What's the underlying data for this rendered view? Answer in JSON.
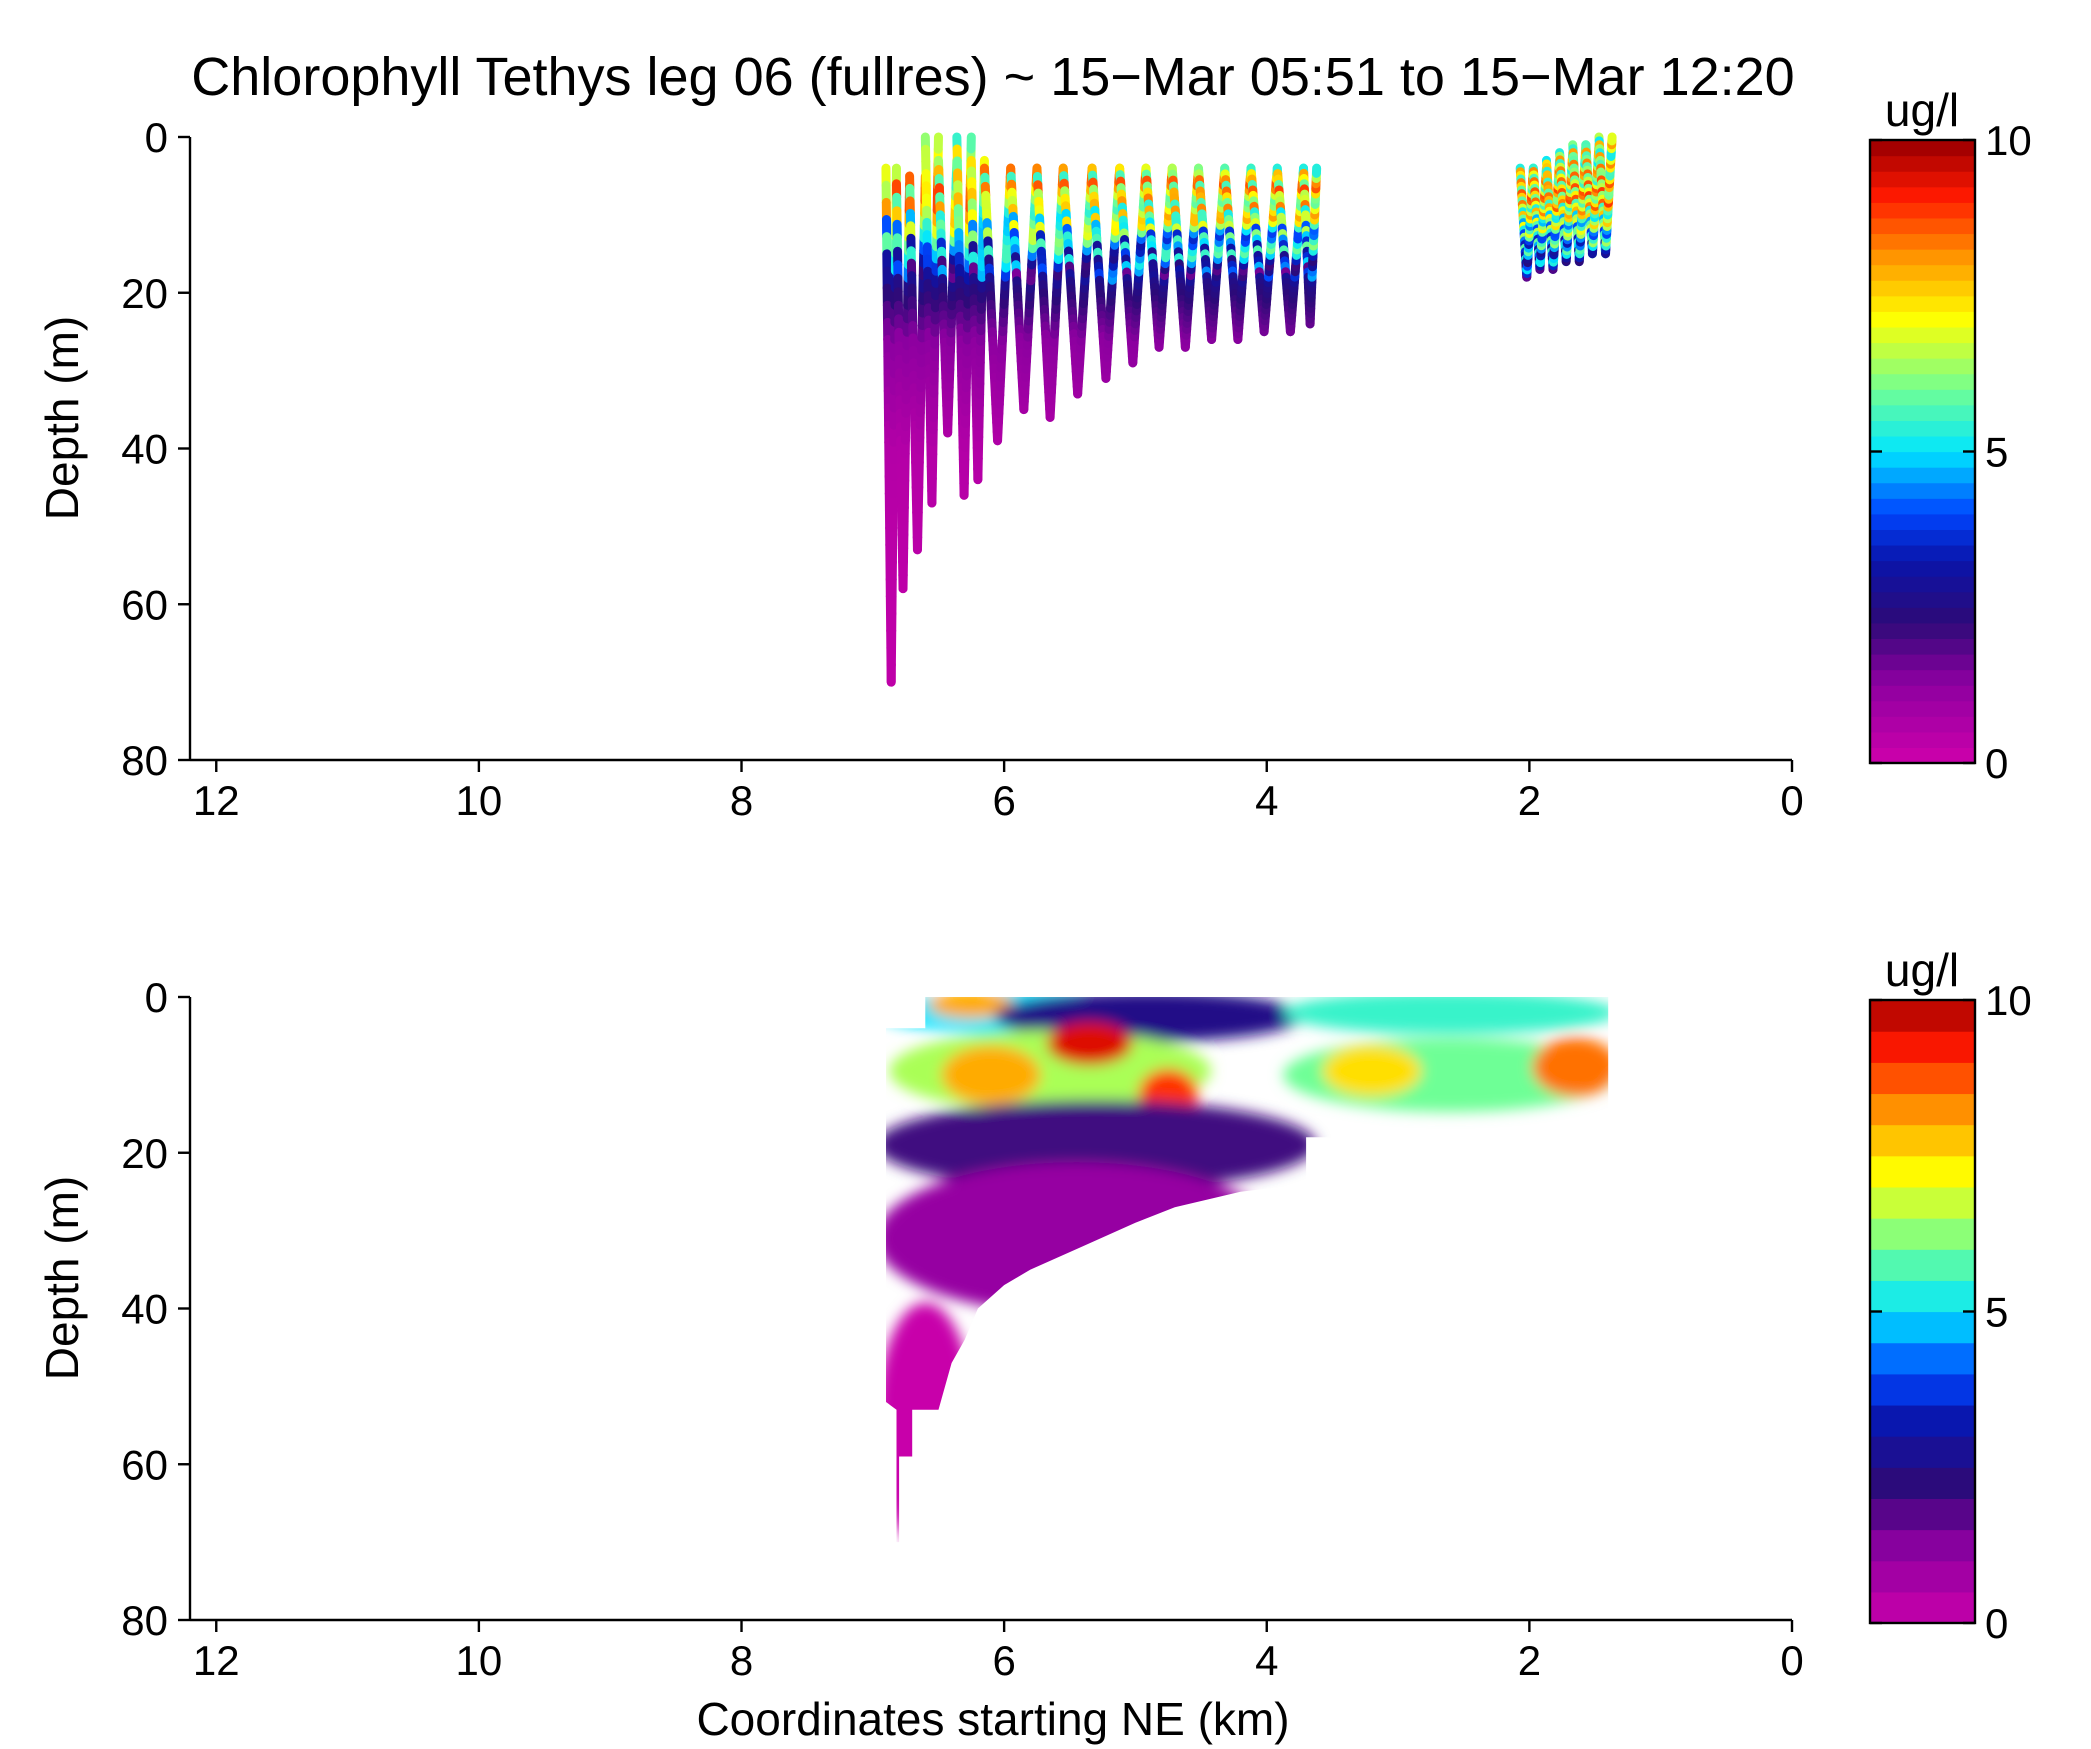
{
  "chart_data": [
    {
      "type": "scatter",
      "title": "Chlorophyll Tethys leg 06 (fullres) ~ 15−Mar 05:51 to 15−Mar 12:20",
      "xlabel": "",
      "ylabel": "Depth (m)",
      "xlim": [
        12.2,
        0
      ],
      "ylim": [
        80,
        0
      ],
      "x_ticks": [
        "12",
        "10",
        "8",
        "6",
        "4",
        "2",
        "0"
      ],
      "y_ticks": [
        "0",
        "20",
        "40",
        "60",
        "80"
      ],
      "colorbar": {
        "label": "ug/l",
        "range": [
          0,
          10
        ],
        "ticks": [
          "0",
          "5",
          "10"
        ],
        "colormap": "jet-reversed-magenta"
      },
      "yo_yo_profiles": [
        {
          "x0": 6.9,
          "x1": 6.82,
          "top": 4,
          "bottom": 70
        },
        {
          "x0": 6.82,
          "x1": 6.72,
          "top": 6,
          "bottom": 58
        },
        {
          "x0": 6.72,
          "x1": 6.6,
          "top": 5,
          "bottom": 53
        },
        {
          "x0": 6.6,
          "x1": 6.5,
          "top": 0,
          "bottom": 47
        },
        {
          "x0": 6.5,
          "x1": 6.36,
          "top": 3,
          "bottom": 38
        },
        {
          "x0": 6.36,
          "x1": 6.25,
          "top": 0,
          "bottom": 46
        },
        {
          "x0": 6.25,
          "x1": 6.15,
          "top": 3,
          "bottom": 44
        },
        {
          "x0": 6.15,
          "x1": 5.95,
          "top": 4,
          "bottom": 39
        },
        {
          "x0": 5.95,
          "x1": 5.75,
          "top": 4,
          "bottom": 35
        },
        {
          "x0": 5.75,
          "x1": 5.55,
          "top": 4,
          "bottom": 36
        },
        {
          "x0": 5.55,
          "x1": 5.33,
          "top": 4,
          "bottom": 33
        },
        {
          "x0": 5.33,
          "x1": 5.12,
          "top": 4,
          "bottom": 31
        },
        {
          "x0": 5.12,
          "x1": 4.92,
          "top": 4,
          "bottom": 29
        },
        {
          "x0": 4.92,
          "x1": 4.72,
          "top": 4,
          "bottom": 27
        },
        {
          "x0": 4.72,
          "x1": 4.52,
          "top": 4,
          "bottom": 27
        },
        {
          "x0": 4.52,
          "x1": 4.32,
          "top": 4,
          "bottom": 26
        },
        {
          "x0": 4.32,
          "x1": 4.12,
          "top": 4,
          "bottom": 26
        },
        {
          "x0": 4.12,
          "x1": 3.92,
          "top": 4,
          "bottom": 25
        },
        {
          "x0": 3.92,
          "x1": 3.72,
          "top": 4,
          "bottom": 25
        },
        {
          "x0": 3.72,
          "x1": 3.62,
          "top": 4,
          "bottom": 24
        },
        {
          "x0": 2.07,
          "x1": 1.97,
          "top": 4,
          "bottom": 18
        },
        {
          "x0": 1.97,
          "x1": 1.87,
          "top": 4,
          "bottom": 17
        },
        {
          "x0": 1.87,
          "x1": 1.77,
          "top": 3,
          "bottom": 17
        },
        {
          "x0": 1.77,
          "x1": 1.67,
          "top": 2,
          "bottom": 16
        },
        {
          "x0": 1.67,
          "x1": 1.57,
          "top": 1,
          "bottom": 16
        },
        {
          "x0": 1.57,
          "x1": 1.47,
          "top": 1,
          "bottom": 15
        },
        {
          "x0": 1.47,
          "x1": 1.37,
          "top": 0,
          "bottom": 15
        }
      ],
      "layers": [
        {
          "depth": 2,
          "value": 6.5
        },
        {
          "depth": 8,
          "value": 7.5
        },
        {
          "depth": 14,
          "value": 4.5
        },
        {
          "depth": 19,
          "value": 2.5
        },
        {
          "depth": 26,
          "value": 1.2
        },
        {
          "depth": 40,
          "value": 0.4
        },
        {
          "depth": 60,
          "value": 0.2
        }
      ]
    },
    {
      "type": "contour",
      "title": "",
      "xlabel": "Coordinates starting NE (km)",
      "ylabel": "Depth (m)",
      "xlim": [
        12.2,
        0
      ],
      "ylim": [
        80,
        0
      ],
      "x_ticks": [
        "12",
        "10",
        "8",
        "6",
        "4",
        "2",
        "0"
      ],
      "y_ticks": [
        "0",
        "20",
        "40",
        "60",
        "80"
      ],
      "colorbar": {
        "label": "ug/l",
        "range": [
          0,
          10
        ],
        "ticks": [
          "0",
          "5",
          "10"
        ],
        "levels": 20
      },
      "data_boundary": [
        [
          6.9,
          4
        ],
        [
          6.6,
          4
        ],
        [
          6.6,
          0
        ],
        [
          1.4,
          0
        ],
        [
          1.4,
          15
        ],
        [
          1.8,
          16
        ],
        [
          2.0,
          18
        ],
        [
          3.7,
          18
        ],
        [
          3.7,
          24
        ],
        [
          4.2,
          25
        ],
        [
          4.7,
          27
        ],
        [
          5.0,
          29
        ],
        [
          5.4,
          32
        ],
        [
          5.8,
          35
        ],
        [
          6.0,
          37
        ],
        [
          6.2,
          40
        ],
        [
          6.3,
          44
        ],
        [
          6.4,
          47
        ],
        [
          6.5,
          53
        ],
        [
          6.7,
          53
        ],
        [
          6.7,
          59
        ],
        [
          6.8,
          59
        ],
        [
          6.8,
          70
        ],
        [
          6.82,
          70
        ],
        [
          6.82,
          53
        ],
        [
          6.9,
          52
        ]
      ],
      "contour_fields": [
        {
          "x": [
            6.9,
            4.8
          ],
          "depth": [
            0,
            4
          ],
          "value": 5
        },
        {
          "x": [
            6.5,
            6.0
          ],
          "depth": [
            0,
            2
          ],
          "value": 8
        },
        {
          "x": [
            6.0,
            3.8
          ],
          "depth": [
            0,
            5
          ],
          "value": 2.5
        },
        {
          "x": [
            3.8,
            1.4
          ],
          "depth": [
            0,
            4
          ],
          "value": 5.5
        },
        {
          "x": [
            6.8,
            4.5
          ],
          "depth": [
            5,
            14
          ],
          "value": 6.5
        },
        {
          "x": [
            6.4,
            5.8
          ],
          "depth": [
            7,
            13
          ],
          "value": 8
        },
        {
          "x": [
            5.6,
            5.1
          ],
          "depth": [
            4,
            8
          ],
          "value": 9.5
        },
        {
          "x": [
            4.9,
            4.6
          ],
          "depth": [
            10,
            15
          ],
          "value": 9
        },
        {
          "x": [
            3.8,
            1.4
          ],
          "depth": [
            6,
            14
          ],
          "value": 6
        },
        {
          "x": [
            3.5,
            2.9
          ],
          "depth": [
            7,
            12
          ],
          "value": 7.5
        },
        {
          "x": [
            1.9,
            1.4
          ],
          "depth": [
            6,
            12
          ],
          "value": 8.5
        },
        {
          "x": [
            6.9,
            3.7
          ],
          "depth": [
            14,
            24
          ],
          "value": 2
        },
        {
          "x": [
            6.9,
            4.0
          ],
          "depth": [
            22,
            40
          ],
          "value": 0.8
        },
        {
          "x": [
            6.9,
            6.3
          ],
          "depth": [
            40,
            70
          ],
          "value": 0.2
        }
      ]
    }
  ]
}
